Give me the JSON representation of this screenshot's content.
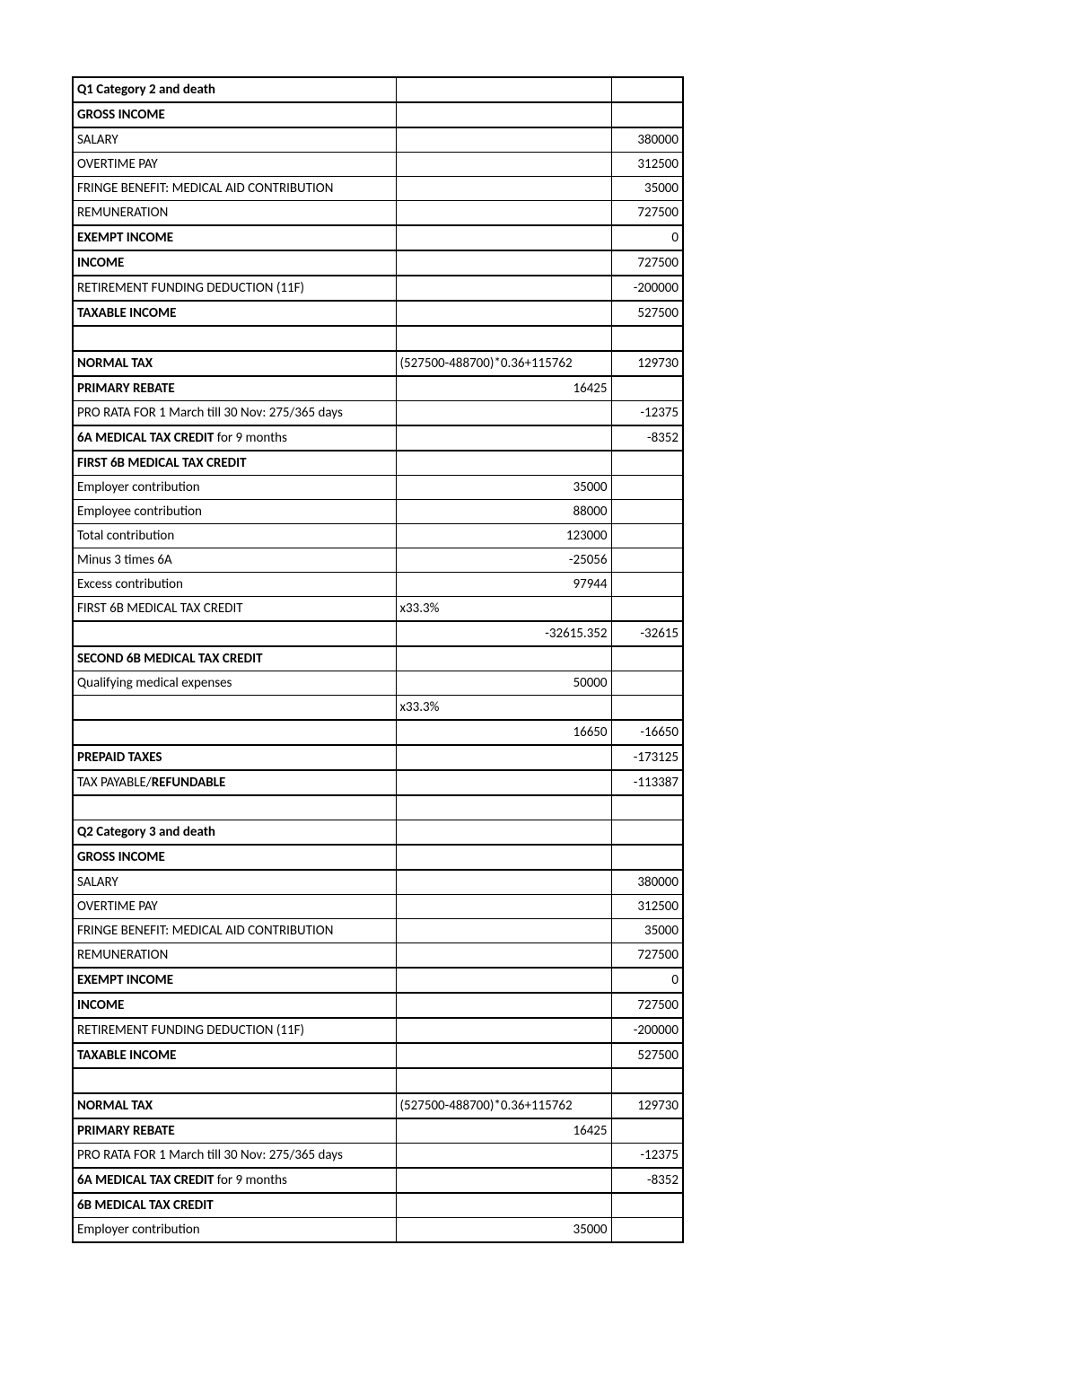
{
  "table": {
    "columns": {
      "c1_width": 360,
      "c2_width": 240,
      "c3_width": 80
    },
    "border_color": "#000000",
    "background_color": "#ffffff",
    "font_family": "Calibri",
    "font_size": 15,
    "rows": [
      {
        "c1": "Q1 Category 2 and death",
        "c2": "",
        "c3": "",
        "bold": true,
        "topline": true
      },
      {
        "c1": "GROSS INCOME",
        "c2": "",
        "c3": "",
        "bold": true,
        "topline": true
      },
      {
        "c1": "SALARY",
        "c2": "",
        "c3": "380000",
        "topline": true
      },
      {
        "c1": "OVERTIME PAY",
        "c2": "",
        "c3": "312500"
      },
      {
        "c1": "FRINGE BENEFIT: MEDICAL AID CONTRIBUTION",
        "c2": "",
        "c3": "35000"
      },
      {
        "c1": "REMUNERATION",
        "c2": "",
        "c3": "727500"
      },
      {
        "c1": "EXEMPT INCOME",
        "c2": "",
        "c3": "0",
        "bold": true,
        "topline": true
      },
      {
        "c1": "INCOME",
        "c2": "",
        "c3": "727500",
        "bold": true,
        "topline": true
      },
      {
        "c1": "RETIREMENT FUNDING DEDUCTION (11F)",
        "c2": "",
        "c3": "-200000",
        "topline": true
      },
      {
        "c1": "TAXABLE INCOME",
        "c2": "",
        "c3": "527500",
        "bold": true,
        "topline": true
      },
      {
        "c1": "",
        "c2": "",
        "c3": "",
        "topline": true
      },
      {
        "c1": "NORMAL TAX",
        "c2": "(527500-488700)*0.36+115762",
        "c3": "129730",
        "bold": true,
        "topline": true
      },
      {
        "c1": "PRIMARY REBATE",
        "c2": "16425",
        "c2_align": "right",
        "c3": "",
        "bold": true,
        "topline": true
      },
      {
        "c1": "PRO RATA FOR 1 March till 30 Nov: 275/365 days",
        "c2": "",
        "c3": "-12375"
      },
      {
        "c1": "6A MEDICAL TAX CREDIT for 9 months",
        "c1_mixed": true,
        "c1_bold_prefix": "6A MEDICAL TAX CREDIT",
        "c1_suffix": " for 9 months",
        "c2": "",
        "c3": "-8352",
        "topline": true
      },
      {
        "c1": "FIRST 6B MEDICAL TAX CREDIT",
        "c2": "",
        "c3": "",
        "bold": true,
        "topline": true
      },
      {
        "c1": "Employer contribution",
        "c2": "35000",
        "c2_align": "right",
        "c3": ""
      },
      {
        "c1": "Employee contribution",
        "c2": "88000",
        "c2_align": "right",
        "c3": ""
      },
      {
        "c1": "Total contribution",
        "c2": "123000",
        "c2_align": "right",
        "c3": ""
      },
      {
        "c1": "Minus 3 times 6A",
        "c2": "-25056",
        "c2_align": "right",
        "c3": ""
      },
      {
        "c1": "Excess contribution",
        "c2": "97944",
        "c2_align": "right",
        "c3": ""
      },
      {
        "c1": "FIRST 6B MEDICAL TAX CREDIT",
        "c2": "x33.3%",
        "c3": ""
      },
      {
        "c1": "",
        "c2": "-32615.352",
        "c2_align": "right",
        "c3": "-32615",
        "topline": true
      },
      {
        "c1": "SECOND 6B MEDICAL TAX CREDIT",
        "c2": "",
        "c3": "",
        "bold": true,
        "topline": true
      },
      {
        "c1": "Qualifying medical expenses",
        "c2": "50000",
        "c2_align": "right",
        "c3": ""
      },
      {
        "c1": "",
        "c2": "x33.3%",
        "c3": ""
      },
      {
        "c1": "",
        "c2": "16650",
        "c2_align": "right",
        "c3": "-16650",
        "topline": true
      },
      {
        "c1": "PREPAID TAXES",
        "c2": "",
        "c3": "-173125",
        "bold": true,
        "topline": true
      },
      {
        "c1": "TAX PAYABLE/REFUNDABLE",
        "c1_mixed": true,
        "c1_normal_prefix": "TAX PAYABLE/",
        "c1_bold_suffix": "REFUNDABLE",
        "c2": "",
        "c3": "-113387",
        "topline": true
      },
      {
        "c1": "",
        "c2": "",
        "c3": "",
        "topline": true
      },
      {
        "c1": "Q2 Category 3 and death",
        "c2": "",
        "c3": "",
        "bold": true
      },
      {
        "c1": "GROSS INCOME",
        "c2": "",
        "c3": "",
        "bold": true,
        "topline": true
      },
      {
        "c1": "SALARY",
        "c2": "",
        "c3": "380000",
        "topline": true
      },
      {
        "c1": "OVERTIME PAY",
        "c2": "",
        "c3": "312500"
      },
      {
        "c1": "FRINGE BENEFIT: MEDICAL AID CONTRIBUTION",
        "c2": "",
        "c3": "35000"
      },
      {
        "c1": "REMUNERATION",
        "c2": "",
        "c3": "727500"
      },
      {
        "c1": "EXEMPT INCOME",
        "c2": "",
        "c3": "0",
        "bold": true,
        "topline": true
      },
      {
        "c1": "INCOME",
        "c2": "",
        "c3": "727500",
        "bold": true,
        "topline": true
      },
      {
        "c1": "RETIREMENT FUNDING DEDUCTION (11F)",
        "c2": "",
        "c3": "-200000",
        "topline": true
      },
      {
        "c1": "TAXABLE INCOME",
        "c2": "",
        "c3": "527500",
        "bold": true,
        "topline": true
      },
      {
        "c1": "",
        "c2": "",
        "c3": "",
        "topline": true
      },
      {
        "c1": "NORMAL TAX",
        "c2": "(527500-488700)*0.36+115762",
        "c3": "129730",
        "bold": true,
        "topline": true
      },
      {
        "c1": "PRIMARY REBATE",
        "c2": "16425",
        "c2_align": "right",
        "c3": "",
        "bold": true,
        "topline": true
      },
      {
        "c1": "PRO RATA FOR 1 March till 30 Nov: 275/365 days",
        "c2": "",
        "c3": "-12375"
      },
      {
        "c1": "6A MEDICAL TAX CREDIT for 9 months",
        "c1_mixed": true,
        "c1_bold_prefix": "6A MEDICAL TAX CREDIT",
        "c1_suffix": " for 9 months",
        "c2": "",
        "c3": "-8352",
        "topline": true
      },
      {
        "c1": "6B MEDICAL TAX CREDIT",
        "c2": "",
        "c3": "",
        "bold": true,
        "topline": true
      },
      {
        "c1": "Employer contribution",
        "c2": "35000",
        "c2_align": "right",
        "c3": "",
        "bottomline": true
      }
    ]
  }
}
